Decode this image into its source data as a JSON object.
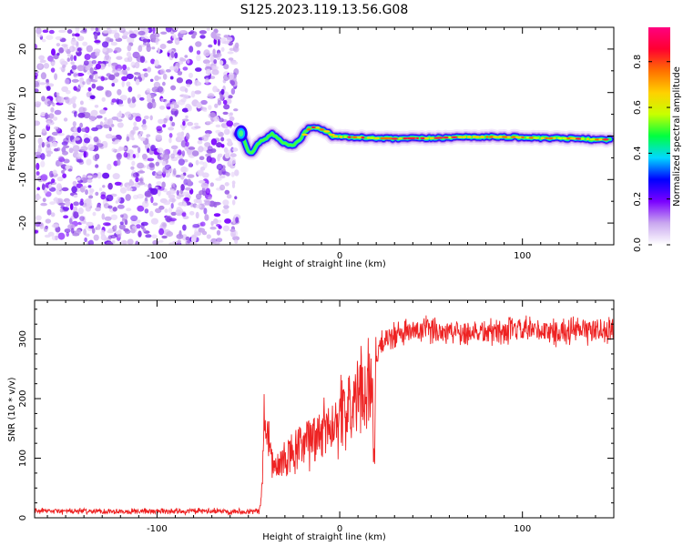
{
  "title": "S125.2023.119.13.56.G08",
  "chart_data": [
    {
      "type": "heatmap",
      "title": "S125.2023.119.13.56.G08",
      "xlabel": "Height of straight line (km)",
      "ylabel": "Frequency (Hz)",
      "xlim": [
        -167,
        150
      ],
      "ylim": [
        -25,
        25
      ],
      "xticks": [
        -100,
        0,
        100
      ],
      "yticks": [
        -20,
        -10,
        0,
        10,
        20
      ],
      "noise_region_x": [
        -167,
        -56
      ],
      "ridge": {
        "x": [
          -56,
          -54,
          -52,
          -50,
          -48,
          -46,
          -44,
          -42,
          -40,
          -37,
          -34,
          -31,
          -28,
          -25,
          -22,
          -19,
          -16,
          -13,
          -10,
          -7,
          -4,
          0,
          10,
          20,
          30,
          40,
          50,
          60,
          70,
          80,
          90,
          100,
          110,
          120,
          130,
          140,
          148
        ],
        "y": [
          0.5,
          1.0,
          -1.5,
          -3.5,
          -4.0,
          -2.5,
          -1.5,
          -1.0,
          -0.5,
          0.5,
          -0.5,
          -1.5,
          -2.0,
          -2.0,
          -1.0,
          1.0,
          2.0,
          2.0,
          1.5,
          1.0,
          0.0,
          -0.2,
          -0.3,
          -0.5,
          -0.6,
          -0.5,
          -0.5,
          -0.3,
          -0.2,
          -0.2,
          -0.2,
          -0.3,
          -0.5,
          -0.5,
          -0.6,
          -0.8,
          -0.8
        ]
      },
      "colorbar": {
        "label": "Normalized spectral amplitude",
        "range": [
          0,
          0.95
        ],
        "ticks": [
          0.0,
          0.2,
          0.4,
          0.6,
          0.8
        ],
        "tick_labels": [
          "0.0",
          "0.2",
          "0.4",
          "0.6",
          "0.8"
        ],
        "colors": [
          "#ffffff",
          "#c9a7ef",
          "#7a00ff",
          "#0000ff",
          "#00d8ff",
          "#00ff40",
          "#c8ff00",
          "#ffd000",
          "#ff7000",
          "#ff0030",
          "#ff0080"
        ]
      }
    },
    {
      "type": "line",
      "xlabel": "Height of straight line (km)",
      "ylabel": "SNR (10 * v/v)",
      "xlim": [
        -167,
        150
      ],
      "ylim": [
        0,
        365
      ],
      "xticks": [
        -100,
        0,
        100
      ],
      "yticks": [
        0,
        100,
        200,
        300
      ],
      "color": "#ee2222",
      "trend": {
        "x": [
          -167,
          -44,
          -43,
          -42,
          -41,
          -40,
          -38,
          -36,
          -34,
          -30,
          -26,
          -22,
          -18,
          -14,
          -10,
          -6,
          -2,
          2,
          6,
          10,
          14,
          17,
          19,
          20,
          21,
          22,
          24,
          26,
          30,
          35,
          40,
          50,
          60,
          80,
          100,
          120,
          140,
          150
        ],
        "y": [
          11,
          11,
          30,
          100,
          190,
          150,
          110,
          85,
          80,
          100,
          105,
          115,
          125,
          135,
          145,
          155,
          165,
          175,
          185,
          200,
          220,
          240,
          120,
          260,
          270,
          285,
          295,
          300,
          305,
          310,
          312,
          315,
          313,
          312,
          314,
          312,
          315,
          314
        ]
      }
    }
  ]
}
